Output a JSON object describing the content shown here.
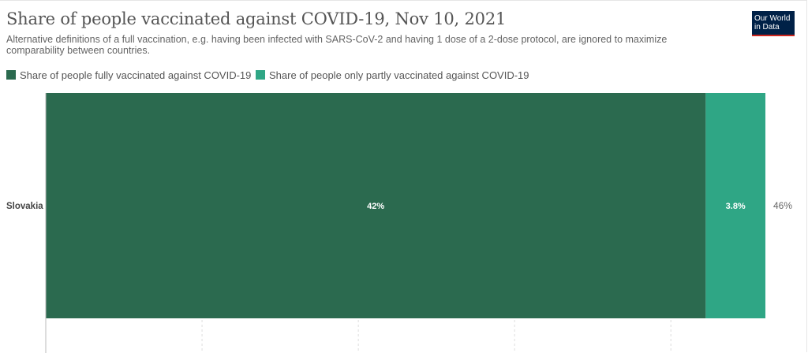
{
  "header": {
    "title": "Share of people vaccinated against COVID-19, Nov 10, 2021",
    "subtitle": "Alternative definitions of a full vaccination, e.g. having been infected with SARS-CoV-2 and having 1 dose of a 2-dose protocol, are ignored to maximize comparability between countries.",
    "logo_line1": "Our World",
    "logo_line2": "in Data"
  },
  "colors": {
    "fully": "#2b6a4f",
    "partly": "#2fa685",
    "logo_bg": "#002147",
    "logo_accent": "#ce261e"
  },
  "chart_data": {
    "type": "bar",
    "orientation": "horizontal",
    "stacked": true,
    "categories": [
      "Slovakia"
    ],
    "series": [
      {
        "name": "Share of people fully vaccinated against COVID-19",
        "values": [
          42
        ],
        "labels": [
          "42%"
        ]
      },
      {
        "name": "Share of people only partly vaccinated against COVID-19",
        "values": [
          3.8
        ],
        "labels": [
          "3.8%"
        ]
      }
    ],
    "totals": [
      "46%"
    ],
    "xlim": [
      0,
      46
    ],
    "grid": true,
    "legend_position": "top-left"
  }
}
